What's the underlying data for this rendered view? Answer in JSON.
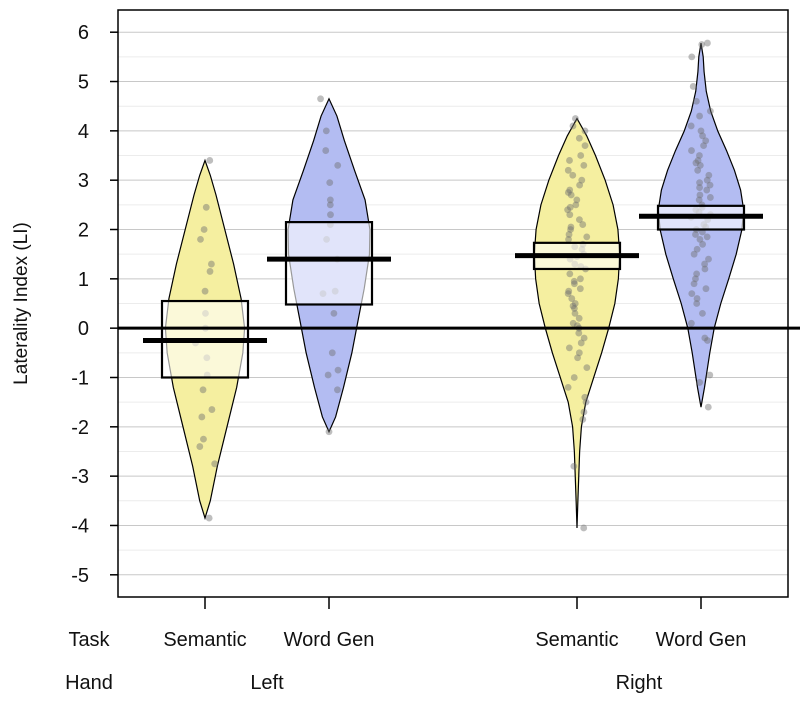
{
  "chart_data": {
    "type": "pirate",
    "ylabel": "Laterality Index (LI)",
    "ylim": [
      -5.45,
      6.45
    ],
    "yticks": [
      "6",
      "5",
      "4",
      "3",
      "2",
      "1",
      "0",
      "-1",
      "-2",
      "-3",
      "-4",
      "-5"
    ],
    "row_labels": {
      "task": "Task",
      "hand": "Hand"
    },
    "groups": [
      {
        "hand": "Left",
        "beans": [
          {
            "task": "Semantic",
            "color": "#f5efa0",
            "mean": -0.25,
            "hdi": [
              -1.0,
              0.55
            ],
            "range": [
              -3.85,
              3.4
            ],
            "density": [
              [
                -3.85,
                0.0
              ],
              [
                -3.5,
                0.12
              ],
              [
                -2.8,
                0.28
              ],
              [
                -2.0,
                0.5
              ],
              [
                -1.2,
                0.72
              ],
              [
                -0.5,
                0.86
              ],
              [
                0.0,
                0.9
              ],
              [
                0.6,
                0.82
              ],
              [
                1.3,
                0.65
              ],
              [
                2.0,
                0.45
              ],
              [
                2.7,
                0.25
              ],
              [
                3.1,
                0.12
              ],
              [
                3.4,
                0.0
              ]
            ],
            "points": [
              3.4,
              2.45,
              2.0,
              1.8,
              1.3,
              1.15,
              0.75,
              0.3,
              0.0,
              -0.3,
              -0.6,
              -0.95,
              -1.25,
              -1.65,
              -1.8,
              -2.25,
              -2.4,
              -2.75,
              -3.85
            ]
          },
          {
            "task": "Word Gen",
            "color": "#b3bcf2",
            "mean": 1.4,
            "hdi": [
              0.48,
              2.15
            ],
            "range": [
              -2.1,
              4.65
            ],
            "density": [
              [
                -2.1,
                0.0
              ],
              [
                -1.8,
                0.15
              ],
              [
                -1.2,
                0.33
              ],
              [
                -0.5,
                0.52
              ],
              [
                0.2,
                0.67
              ],
              [
                0.8,
                0.8
              ],
              [
                1.5,
                0.92
              ],
              [
                2.0,
                0.93
              ],
              [
                2.6,
                0.82
              ],
              [
                3.2,
                0.58
              ],
              [
                3.8,
                0.35
              ],
              [
                4.3,
                0.18
              ],
              [
                4.65,
                0.0
              ]
            ],
            "points": [
              4.65,
              4.0,
              3.6,
              3.3,
              2.95,
              2.6,
              2.5,
              2.3,
              2.1,
              1.8,
              1.4,
              0.75,
              0.7,
              0.3,
              -0.5,
              -0.85,
              -0.95,
              -1.25,
              -2.1
            ]
          }
        ]
      },
      {
        "hand": "Right",
        "beans": [
          {
            "task": "Semantic",
            "color": "#f5efa0",
            "mean": 1.47,
            "hdi": [
              1.2,
              1.73
            ],
            "range": [
              -4.05,
              4.25
            ],
            "density": [
              [
                -4.05,
                0.0
              ],
              [
                -3.5,
                0.02
              ],
              [
                -3.0,
                0.04
              ],
              [
                -2.5,
                0.06
              ],
              [
                -2.0,
                0.1
              ],
              [
                -1.5,
                0.2
              ],
              [
                -1.0,
                0.38
              ],
              [
                -0.5,
                0.56
              ],
              [
                0.0,
                0.72
              ],
              [
                0.5,
                0.86
              ],
              [
                1.0,
                0.94
              ],
              [
                1.5,
                0.97
              ],
              [
                2.0,
                0.93
              ],
              [
                2.5,
                0.82
              ],
              [
                3.0,
                0.64
              ],
              [
                3.5,
                0.42
              ],
              [
                3.9,
                0.22
              ],
              [
                4.25,
                0.0
              ]
            ],
            "points": [
              4.25,
              4.1,
              4.0,
              3.85,
              3.7,
              3.5,
              3.4,
              3.3,
              3.2,
              3.1,
              3.0,
              2.9,
              2.8,
              2.75,
              2.7,
              2.6,
              2.5,
              2.45,
              2.4,
              2.3,
              2.2,
              2.1,
              2.05,
              2.0,
              1.9,
              1.85,
              1.8,
              1.7,
              1.65,
              1.6,
              1.5,
              1.45,
              1.4,
              1.3,
              1.25,
              1.2,
              1.1,
              1.0,
              0.95,
              0.9,
              0.8,
              0.75,
              0.7,
              0.6,
              0.5,
              0.45,
              0.4,
              0.3,
              0.2,
              0.1,
              0.05,
              0.0,
              -0.1,
              -0.2,
              -0.3,
              -0.4,
              -0.5,
              -0.6,
              -0.8,
              -1.0,
              -1.2,
              -1.4,
              -1.5,
              -1.7,
              -1.85,
              -2.8,
              -4.05
            ]
          },
          {
            "task": "Word Gen",
            "color": "#b3bcf2",
            "mean": 2.27,
            "hdi": [
              2.0,
              2.48
            ],
            "range": [
              -1.6,
              5.78
            ],
            "density": [
              [
                -1.6,
                0.0
              ],
              [
                -1.2,
                0.08
              ],
              [
                -0.5,
                0.2
              ],
              [
                0.0,
                0.3
              ],
              [
                0.5,
                0.45
              ],
              [
                1.0,
                0.63
              ],
              [
                1.5,
                0.8
              ],
              [
                2.0,
                0.93
              ],
              [
                2.4,
                0.97
              ],
              [
                2.8,
                0.9
              ],
              [
                3.2,
                0.76
              ],
              [
                3.6,
                0.58
              ],
              [
                4.0,
                0.38
              ],
              [
                4.4,
                0.22
              ],
              [
                4.8,
                0.12
              ],
              [
                5.2,
                0.07
              ],
              [
                5.5,
                0.05
              ],
              [
                5.78,
                0.0
              ]
            ],
            "points": [
              5.78,
              5.75,
              5.5,
              4.9,
              4.6,
              4.4,
              4.3,
              4.1,
              4.0,
              3.9,
              3.8,
              3.7,
              3.6,
              3.5,
              3.4,
              3.35,
              3.3,
              3.2,
              3.1,
              3.0,
              2.95,
              2.9,
              2.85,
              2.8,
              2.7,
              2.65,
              2.6,
              2.5,
              2.45,
              2.4,
              2.35,
              2.3,
              2.25,
              2.2,
              2.1,
              2.05,
              2.0,
              1.95,
              1.9,
              1.85,
              1.8,
              1.7,
              1.6,
              1.5,
              1.4,
              1.3,
              1.2,
              1.1,
              1.0,
              0.9,
              0.8,
              0.7,
              0.6,
              0.5,
              0.3,
              0.1,
              -0.2,
              -0.25,
              -0.95,
              -1.1,
              -1.6
            ]
          }
        ]
      }
    ],
    "grid": true
  }
}
